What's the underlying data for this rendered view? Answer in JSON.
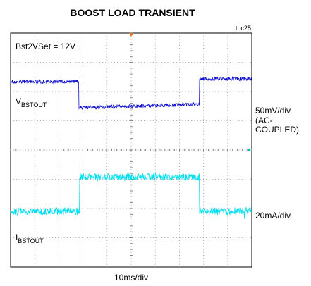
{
  "header": {
    "title": "BOOST LOAD TRANSIENT",
    "figure_id": "toc25"
  },
  "screen": {
    "setting": "Bst2VSet = 12V",
    "traces": [
      {
        "symbol": "V",
        "subscript": "BSTOUT",
        "scale": [
          "50mV/div",
          "(AC-",
          "COUPLED)"
        ]
      },
      {
        "symbol": "I",
        "subscript": "BSTOUT",
        "scale": [
          "20mA/div"
        ]
      }
    ],
    "time_scale": "10ms/div"
  }
}
